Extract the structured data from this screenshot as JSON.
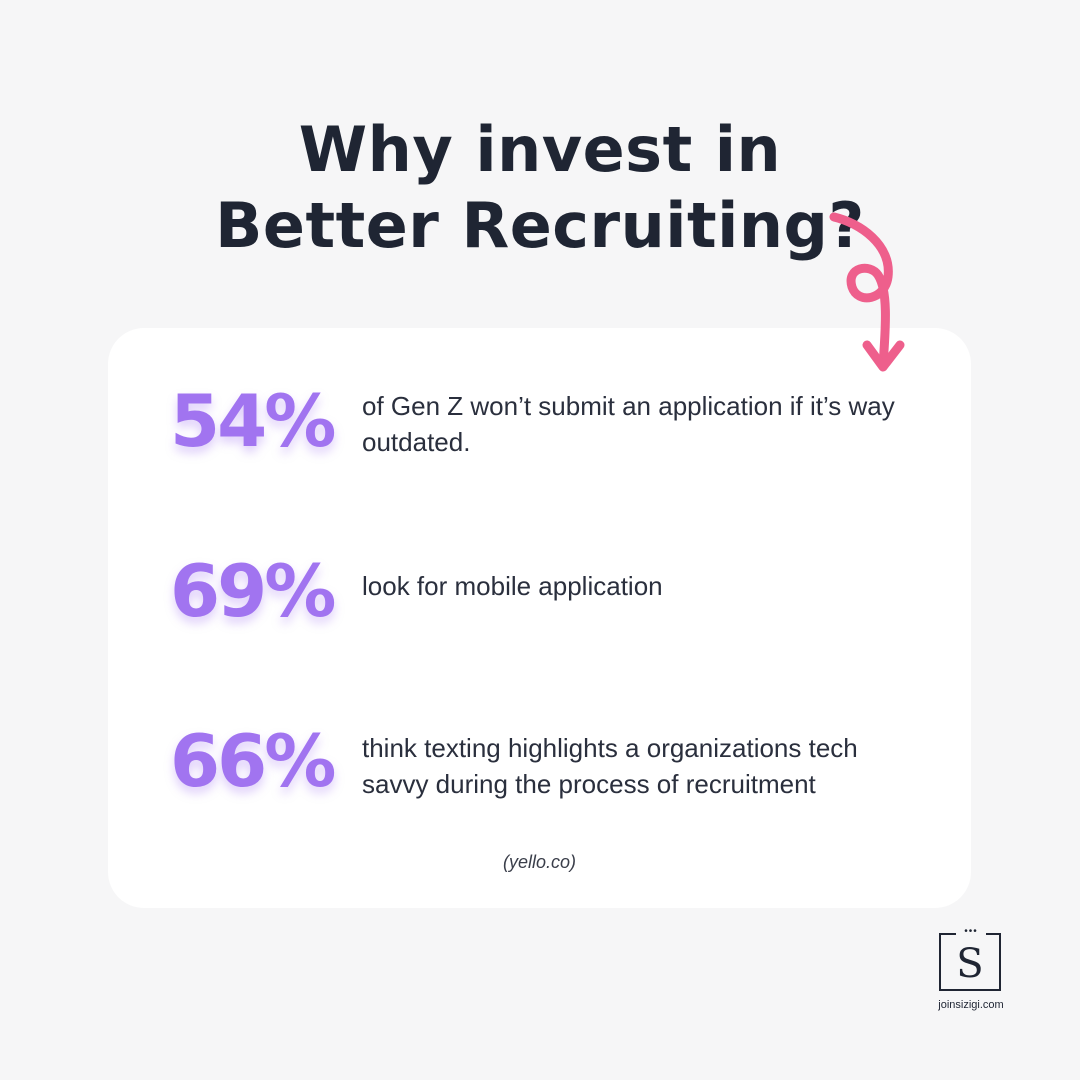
{
  "title": {
    "line1": "Why invest in",
    "line2": "Better Recruiting?"
  },
  "stats": [
    {
      "percent": "54%",
      "text": "of Gen Z won’t submit an application if it’s way outdated."
    },
    {
      "percent": "69%",
      "text": "look for mobile application"
    },
    {
      "percent": "66%",
      "text": "think texting highlights a organizations tech savvy during the process of recruitment"
    }
  ],
  "source": "(yello.co)",
  "logo": {
    "letter": "S",
    "dots": "•••",
    "url": "joinsizigi.com"
  },
  "colors": {
    "background": "#f6f6f7",
    "card": "#ffffff",
    "title": "#1f2533",
    "accent_purple": "#a174f0",
    "arrow_pink": "#ee5f8c"
  },
  "icons": {
    "arrow": "curly-arrow-down-icon",
    "logo": "sizigi-logo-icon"
  }
}
